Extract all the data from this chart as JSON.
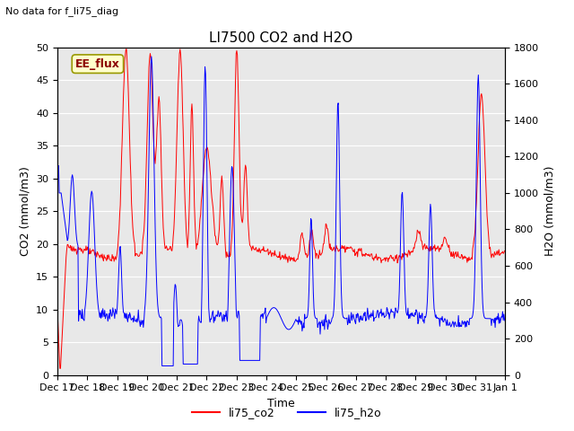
{
  "title": "LI7500 CO2 and H2O",
  "top_left_text": "No data for f_li75_diag",
  "xlabel": "Time",
  "ylabel_left": "CO2 (mmol/m3)",
  "ylabel_right": "H2O (mmol/m3)",
  "ylim_left": [
    0,
    50
  ],
  "ylim_right": [
    0,
    1800
  ],
  "xtick_labels": [
    "Dec 17",
    "Dec 18",
    "Dec 19",
    "Dec 20",
    "Dec 21",
    "Dec 22",
    "Dec 23",
    "Dec 24",
    "Dec 25",
    "Dec 26",
    "Dec 27",
    "Dec 28",
    "Dec 29",
    "Dec 30",
    "Dec 31",
    "Jan 1"
  ],
  "box_label": "EE_flux",
  "box_facecolor": "#ffffcc",
  "box_edgecolor": "#999900",
  "legend_labels": [
    "li75_co2",
    "li75_h2o"
  ],
  "co2_color": "#ff0000",
  "h2o_color": "#0000ff",
  "plot_bg_color": "#e8e8e8",
  "title_fontsize": 11,
  "label_fontsize": 9,
  "tick_fontsize": 8,
  "fig_width": 6.4,
  "fig_height": 4.8,
  "dpi": 100
}
